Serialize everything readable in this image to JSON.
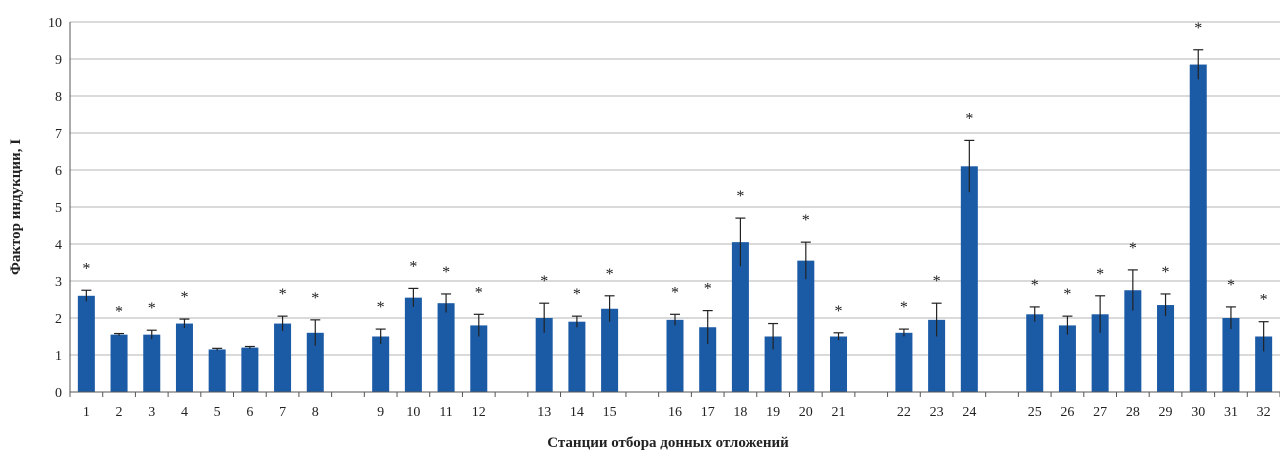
{
  "chart_data": {
    "type": "bar",
    "title": "",
    "xlabel": "Станции отбора донных отложений",
    "ylabel": "Фактор индукции, I",
    "ylim": [
      0,
      10
    ],
    "yticks": [
      "0",
      "1",
      "2",
      "3",
      "4",
      "5",
      "6",
      "7",
      "8",
      "9",
      "10"
    ],
    "grid": true,
    "legend": "none",
    "colors": {
      "bar": "#1b5aa5",
      "grid": "#b5b5b5",
      "axis": "#555555",
      "errorbar": "#222222"
    },
    "significance_marker": "*",
    "categories": [
      "1",
      "2",
      "3",
      "4",
      "5",
      "6",
      "7",
      "8",
      "9",
      "10",
      "11",
      "12",
      "13",
      "14",
      "15",
      "16",
      "17",
      "18",
      "19",
      "20",
      "21",
      "22",
      "23",
      "24",
      "25",
      "26",
      "27",
      "28",
      "29",
      "30",
      "31",
      "32"
    ],
    "groups": [
      [
        "1",
        "2",
        "3",
        "4",
        "5",
        "6",
        "7",
        "8"
      ],
      [
        "9",
        "10",
        "11",
        "12"
      ],
      [
        "13",
        "14",
        "15"
      ],
      [
        "16",
        "17",
        "18",
        "19",
        "20",
        "21"
      ],
      [
        "22",
        "23",
        "24"
      ],
      [
        "25",
        "26",
        "27",
        "28",
        "29",
        "30",
        "31",
        "32"
      ]
    ],
    "values": [
      2.6,
      1.55,
      1.55,
      1.85,
      1.15,
      1.2,
      1.85,
      1.6,
      1.5,
      2.55,
      2.4,
      1.8,
      2.0,
      1.9,
      2.25,
      1.95,
      1.75,
      4.05,
      1.5,
      3.55,
      1.5,
      1.6,
      1.95,
      6.1,
      2.1,
      1.8,
      2.1,
      2.75,
      2.35,
      8.85,
      2.0,
      1.5
    ],
    "errors": [
      0.15,
      0.03,
      0.12,
      0.12,
      0.03,
      0.03,
      0.2,
      0.35,
      0.2,
      0.25,
      0.25,
      0.3,
      0.4,
      0.15,
      0.35,
      0.15,
      0.45,
      0.65,
      0.35,
      0.5,
      0.1,
      0.1,
      0.45,
      0.7,
      0.2,
      0.25,
      0.5,
      0.55,
      0.3,
      0.4,
      0.3,
      0.4
    ],
    "significant": [
      true,
      true,
      true,
      true,
      false,
      false,
      true,
      true,
      true,
      true,
      true,
      true,
      true,
      true,
      true,
      true,
      true,
      true,
      false,
      true,
      true,
      true,
      true,
      true,
      true,
      true,
      true,
      true,
      true,
      true,
      true,
      true
    ]
  }
}
